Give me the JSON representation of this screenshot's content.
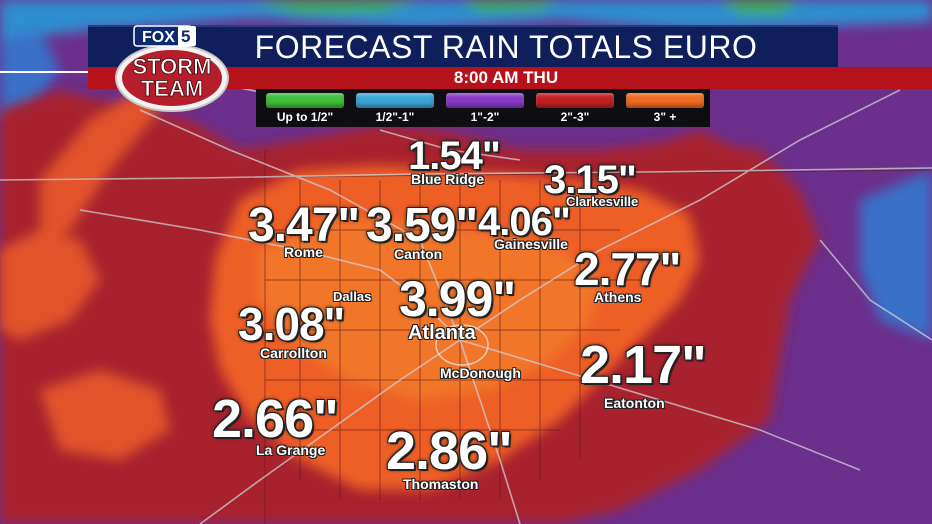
{
  "header": {
    "title": "FORECAST RAIN TOTALS EURO",
    "subtitle": "8:00 AM THU"
  },
  "logo": {
    "line1": "FOX",
    "number": "5",
    "line2": "STORM",
    "line3": "TEAM"
  },
  "legend": [
    {
      "label": "Up to 1/2\"",
      "color": "#3fbf3a"
    },
    {
      "label": "1/2\"-1\"",
      "color": "#3aa6d6"
    },
    {
      "label": "1\"-2\"",
      "color": "#8a3ac9"
    },
    {
      "label": "2\"-3\"",
      "color": "#c41f24"
    },
    {
      "label": "3\" +",
      "color": "#f26a21"
    }
  ],
  "locations": [
    {
      "city": "Blue Ridge",
      "amount": "1.54\""
    },
    {
      "city": "Clarkesville",
      "amount": "3.15\""
    },
    {
      "city": "Rome",
      "amount": "3.47\""
    },
    {
      "city": "Canton",
      "amount": "3.59\""
    },
    {
      "city": "Gainesville",
      "amount": "4.06\""
    },
    {
      "city": "Athens",
      "amount": "2.77\""
    },
    {
      "city": "Dallas",
      "amount": ""
    },
    {
      "city": "Atlanta",
      "amount": "3.99\""
    },
    {
      "city": "Carrollton",
      "amount": "3.08\""
    },
    {
      "city": "McDonough",
      "amount": ""
    },
    {
      "city": "Eatonton",
      "amount": "2.17\""
    },
    {
      "city": "La Grange",
      "amount": "2.66\""
    },
    {
      "city": "Thomaston",
      "amount": "2.86\""
    }
  ]
}
